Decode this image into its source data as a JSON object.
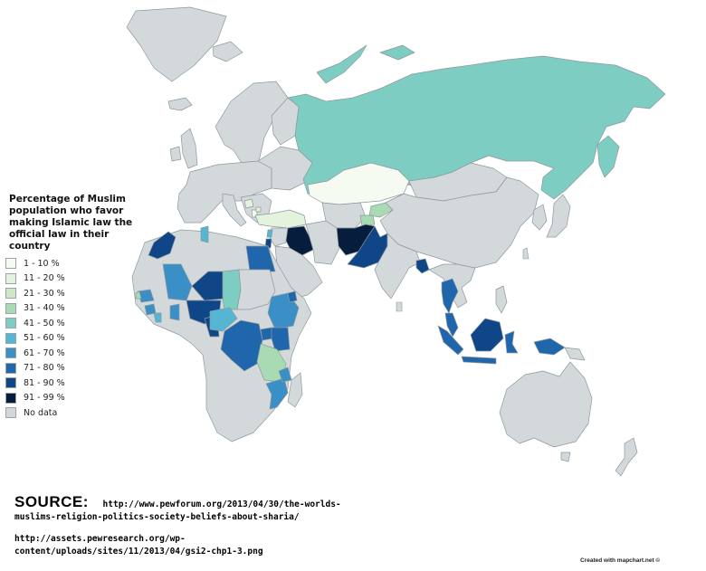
{
  "legend": {
    "title": "Percentage of Muslim population who favor making Islamic law the official law in their country",
    "items": [
      {
        "label": "1 - 10 %",
        "color": "#f5fbf1"
      },
      {
        "label": "11 - 20 %",
        "color": "#e3f3dd"
      },
      {
        "label": "21 - 30 %",
        "color": "#cde9c3"
      },
      {
        "label": "31 - 40 %",
        "color": "#a8dbb4"
      },
      {
        "label": "41 - 50 %",
        "color": "#7dcdc3"
      },
      {
        "label": "51 - 60 %",
        "color": "#54b6d3"
      },
      {
        "label": "61 - 70 %",
        "color": "#3a8fc7"
      },
      {
        "label": "71 - 80 %",
        "color": "#1f66ad"
      },
      {
        "label": "81 - 90 %",
        "color": "#0e4688"
      },
      {
        "label": "91 - 99 %",
        "color": "#061d3d"
      },
      {
        "label": "No data",
        "color": "#d3d8db"
      }
    ]
  },
  "source": {
    "heading": "SOURCE:",
    "line1": "http://www.pewforum.org/2013/04/30/the-worlds-",
    "line2": "muslims-religion-politics-society-beliefs-about-sharia/",
    "line3": "http://assets.pewresearch.org/wp-",
    "line4": "content/uploads/sites/11/2013/04/gsi2-chp1-3.png"
  },
  "credit": "Created with mapchart.net ©",
  "colors": {
    "no_data": "#d3d8db",
    "border": "#8f979c"
  }
}
